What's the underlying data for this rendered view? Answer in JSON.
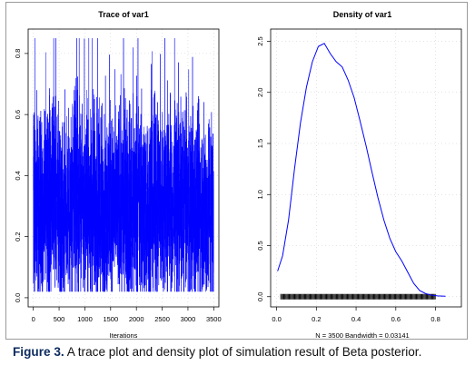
{
  "caption": {
    "label": "Figure 3.",
    "text": "A trace plot and density plot of simulation result of Beta posterior."
  },
  "colors": {
    "series": "#0000ff",
    "axis": "#000000",
    "grid": "#c8c8c8"
  },
  "chart_data": [
    {
      "type": "line",
      "title": "Trace of var1",
      "xlabel": "Iterations",
      "ylabel": "",
      "xlim": [
        0,
        3500
      ],
      "ylim": [
        0.0,
        0.85
      ],
      "xticks": [
        0,
        500,
        1000,
        1500,
        2000,
        2500,
        3000,
        3500
      ],
      "xtick_labels": [
        "0",
        "500",
        "1000",
        "1500",
        "2000",
        "2500",
        "3000",
        "3500"
      ],
      "yticks": [
        0.0,
        0.2,
        0.4,
        0.6,
        0.8
      ],
      "ytick_labels": [
        "0.0",
        "0.2",
        "0.4",
        "0.6",
        "0.8"
      ],
      "grid": true,
      "series": [
        {
          "n_samples": 3500,
          "typical_range": [
            0.1,
            0.6
          ],
          "center": 0.3,
          "min": 0.02,
          "max": 0.85
        }
      ]
    },
    {
      "type": "line",
      "title": "Density of var1",
      "xlabel": "N = 3500   Bandwidth = 0.03141",
      "ylabel": "",
      "xlim": [
        0.0,
        0.9
      ],
      "ylim": [
        0.0,
        2.5
      ],
      "xticks": [
        0.0,
        0.2,
        0.4,
        0.6,
        0.8
      ],
      "xtick_labels": [
        "0.0",
        "0.2",
        "0.4",
        "0.6",
        "0.8"
      ],
      "yticks": [
        0.0,
        0.5,
        1.0,
        1.5,
        2.0,
        2.5
      ],
      "ytick_labels": [
        "0.0",
        "0.5",
        "1.0",
        "1.5",
        "2.0",
        "2.5"
      ],
      "grid": true,
      "series": [
        {
          "x": [
            0.005,
            0.03,
            0.06,
            0.09,
            0.12,
            0.15,
            0.18,
            0.21,
            0.24,
            0.27,
            0.3,
            0.33,
            0.36,
            0.39,
            0.42,
            0.45,
            0.48,
            0.51,
            0.54,
            0.57,
            0.6,
            0.63,
            0.66,
            0.69,
            0.72,
            0.75,
            0.78,
            0.81,
            0.85
          ],
          "y": [
            0.25,
            0.4,
            0.75,
            1.25,
            1.7,
            2.05,
            2.3,
            2.45,
            2.48,
            2.38,
            2.3,
            2.25,
            2.12,
            1.95,
            1.72,
            1.48,
            1.22,
            0.97,
            0.75,
            0.57,
            0.44,
            0.35,
            0.24,
            0.13,
            0.06,
            0.03,
            0.015,
            0.008,
            0.004
          ]
        }
      ],
      "rug": {
        "from": 0.02,
        "to": 0.8,
        "level": 0.0
      }
    }
  ]
}
